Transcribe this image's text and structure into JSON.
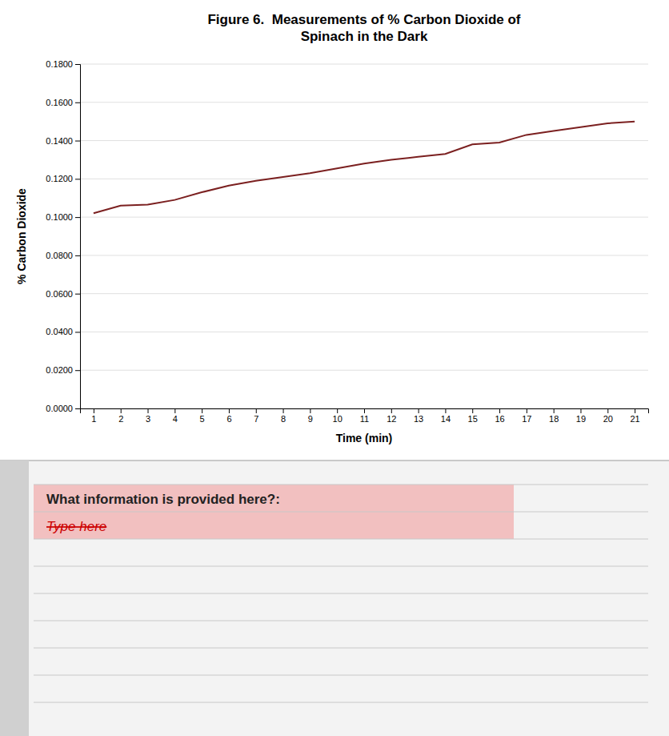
{
  "chart_data": {
    "type": "line",
    "title": "Figure 6.  Measurements of % Carbon Dioxide of",
    "subtitle": "Spinach in the Dark",
    "x_label": "Time (min)",
    "y_label": "% Carbon Dioxide",
    "x": [
      1,
      2,
      3,
      4,
      5,
      6,
      7,
      8,
      9,
      10,
      11,
      12,
      13,
      14,
      15,
      16,
      17,
      18,
      19,
      20,
      21
    ],
    "values": [
      0.102,
      0.106,
      0.1065,
      0.109,
      0.113,
      0.1165,
      0.119,
      0.121,
      0.123,
      0.1255,
      0.128,
      0.13,
      0.1315,
      0.133,
      0.138,
      0.139,
      0.143,
      0.145,
      0.147,
      0.149,
      0.15
    ],
    "color": "#7B2020",
    "xlim": [
      0.5,
      21.5
    ],
    "xticks": [
      1,
      2,
      3,
      4,
      5,
      6,
      7,
      8,
      9,
      10,
      11,
      12,
      13,
      14,
      15,
      16,
      17,
      18,
      19,
      20,
      21
    ],
    "ylim": [
      0.0,
      0.18
    ],
    "yticks": [
      {
        "value": 0.0,
        "label": "0.0000"
      },
      {
        "value": 0.02,
        "label": "0.0200"
      },
      {
        "value": 0.04,
        "label": "0.0400"
      },
      {
        "value": 0.06,
        "label": "0.0600"
      },
      {
        "value": 0.08,
        "label": "0.0800"
      },
      {
        "value": 0.1,
        "label": "0.1000"
      },
      {
        "value": 0.12,
        "label": "0.1200"
      },
      {
        "value": 0.14,
        "label": "0.1400"
      },
      {
        "value": 0.16,
        "label": "0.1600"
      },
      {
        "value": 0.18,
        "label": "0.1800"
      }
    ],
    "grid": "y",
    "annotations": [
      "What information is provided here?:",
      "Type here"
    ]
  }
}
